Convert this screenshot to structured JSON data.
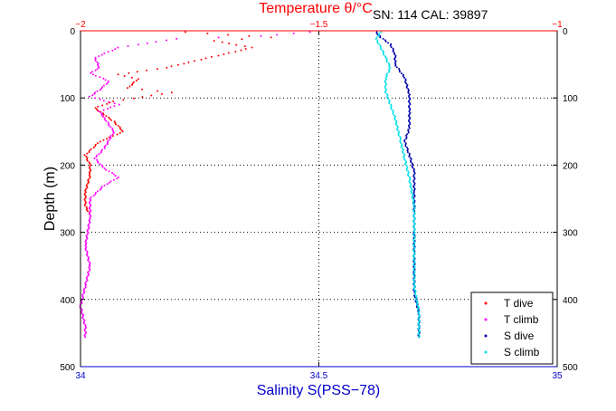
{
  "chart_data": {
    "type": "scatter",
    "top_axis": {
      "label": "Temperature θ/°C",
      "min": -2,
      "max": -1,
      "ticks": [
        -2,
        -1.5,
        -1
      ],
      "tick_labels": [
        "−2",
        "−1.5",
        "−1"
      ],
      "color": "#ff0000"
    },
    "bottom_axis": {
      "label": "Salinity S(PSS−78)",
      "min": 34,
      "max": 35,
      "ticks": [
        34,
        34.5,
        35
      ],
      "tick_labels": [
        "34",
        "34.5",
        "35"
      ],
      "color": "#0000cc"
    },
    "y_axis": {
      "label": "Depth (m)",
      "min": 0,
      "max": 500,
      "inverted": true,
      "ticks": [
        0,
        100,
        200,
        300,
        400,
        500
      ],
      "tick_labels": [
        "0",
        "100",
        "200",
        "300",
        "400",
        "500"
      ]
    },
    "grid": "dotted",
    "legend_position": "bottom-right",
    "annotation": "SN: 114  CAL: 39897",
    "series": [
      {
        "name": "T dive",
        "axis": "temperature",
        "color": "#ff0000",
        "points": [
          [
            -1.78,
            2
          ],
          [
            -1.6,
            10
          ],
          [
            -1.72,
            15
          ],
          [
            -1.64,
            25
          ],
          [
            -1.7,
            35
          ],
          [
            -1.76,
            45
          ],
          [
            -1.82,
            55
          ],
          [
            -1.92,
            65
          ],
          [
            -1.88,
            72
          ],
          [
            -1.9,
            85
          ],
          [
            -1.81,
            92
          ],
          [
            -1.93,
            105
          ],
          [
            -1.97,
            115
          ],
          [
            -1.95,
            125
          ],
          [
            -1.93,
            135
          ],
          [
            -1.91,
            150
          ],
          [
            -1.96,
            165
          ],
          [
            -1.99,
            185
          ],
          [
            -1.98,
            200
          ],
          [
            -1.98,
            215
          ],
          [
            -1.99,
            240
          ],
          [
            -1.99,
            260
          ],
          [
            -1.98,
            275
          ]
        ]
      },
      {
        "name": "T climb",
        "axis": "temperature",
        "color": "#ff00ff",
        "points": [
          [
            -1.52,
            2
          ],
          [
            -1.62,
            8
          ],
          [
            -1.8,
            12
          ],
          [
            -1.92,
            25
          ],
          [
            -1.97,
            40
          ],
          [
            -1.96,
            55
          ],
          [
            -1.98,
            63
          ],
          [
            -1.94,
            75
          ],
          [
            -1.96,
            88
          ],
          [
            -1.98,
            98
          ],
          [
            -1.92,
            110
          ],
          [
            -1.96,
            120
          ],
          [
            -1.95,
            130
          ],
          [
            -1.93,
            150
          ],
          [
            -1.95,
            175
          ],
          [
            -1.97,
            190
          ],
          [
            -1.95,
            205
          ],
          [
            -1.92,
            218
          ],
          [
            -1.95,
            230
          ],
          [
            -1.98,
            250
          ],
          [
            -1.98,
            280
          ],
          [
            -1.99,
            320
          ],
          [
            -1.98,
            350
          ],
          [
            -1.99,
            380
          ],
          [
            -2.0,
            410
          ],
          [
            -1.99,
            440
          ],
          [
            -1.99,
            458
          ]
        ]
      },
      {
        "name": "S dive",
        "axis": "salinity",
        "color": "#0000aa",
        "points": [
          [
            34.62,
            2
          ],
          [
            34.63,
            10
          ],
          [
            34.65,
            20
          ],
          [
            34.66,
            35
          ],
          [
            34.66,
            50
          ],
          [
            34.68,
            70
          ],
          [
            34.69,
            95
          ],
          [
            34.69,
            120
          ],
          [
            34.69,
            145
          ],
          [
            34.68,
            165
          ],
          [
            34.69,
            185
          ],
          [
            34.7,
            210
          ],
          [
            34.7,
            240
          ],
          [
            34.7,
            270
          ],
          [
            34.7,
            300
          ],
          [
            34.7,
            330
          ],
          [
            34.7,
            360
          ],
          [
            34.7,
            390
          ],
          [
            34.71,
            420
          ],
          [
            34.71,
            440
          ],
          [
            34.71,
            458
          ]
        ]
      },
      {
        "name": "S climb",
        "axis": "salinity",
        "color": "#00e0e8",
        "points": [
          [
            34.63,
            2
          ],
          [
            34.62,
            12
          ],
          [
            34.63,
            25
          ],
          [
            34.64,
            40
          ],
          [
            34.65,
            55
          ],
          [
            34.64,
            70
          ],
          [
            34.64,
            90
          ],
          [
            34.65,
            110
          ],
          [
            34.66,
            130
          ],
          [
            34.67,
            160
          ],
          [
            34.68,
            190
          ],
          [
            34.69,
            220
          ],
          [
            34.7,
            260
          ],
          [
            34.7,
            300
          ],
          [
            34.7,
            340
          ],
          [
            34.7,
            380
          ],
          [
            34.71,
            420
          ],
          [
            34.71,
            458
          ]
        ]
      }
    ]
  }
}
